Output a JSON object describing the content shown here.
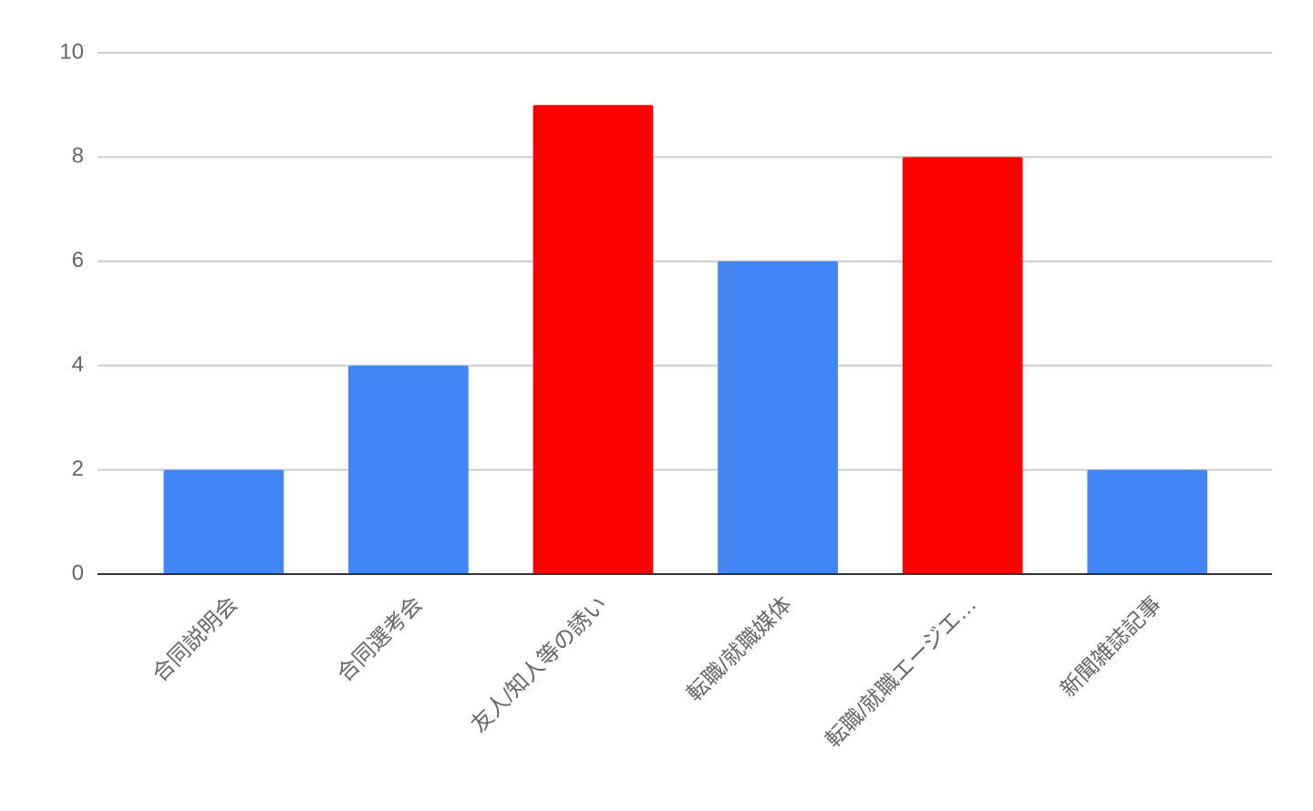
{
  "chart_data": {
    "type": "bar",
    "categories": [
      "合同説明会",
      "合同選考会",
      "友人/知人等の誘い",
      "転職/就職媒体",
      "転職/就職エージエ…",
      "新聞雑誌記事"
    ],
    "values": [
      2,
      4,
      9,
      6,
      8,
      2
    ],
    "colors": [
      "#4285f4",
      "#4285f4",
      "#ff0000",
      "#4285f4",
      "#ff0000",
      "#4285f4"
    ],
    "ylim": [
      0,
      10
    ],
    "yticks": [
      0,
      2,
      4,
      6,
      8,
      10
    ],
    "grid": true
  }
}
